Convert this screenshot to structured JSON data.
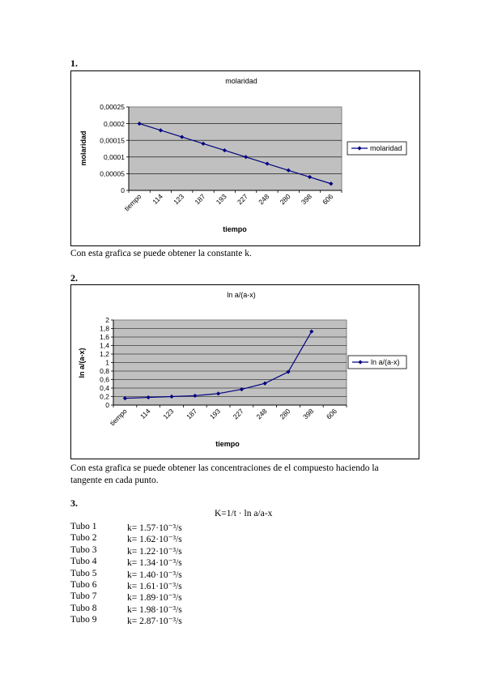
{
  "sections": [
    {
      "number": "1.",
      "caption": "Con esta grafica se puede obtener la constante k."
    },
    {
      "number": "2.",
      "caption_line1": "Con esta grafica se puede obtener las concentraciones de el compuesto haciendo la",
      "caption_line2": "tangente en cada punto."
    },
    {
      "number": "3.",
      "formula": "K=1/t · ln a/a-x"
    }
  ],
  "chart_data": [
    {
      "type": "line",
      "title": "molaridad",
      "xlabel": "tiempo",
      "ylabel": "molaridad",
      "categories": [
        "tiempo",
        "114",
        "123",
        "187",
        "193",
        "227",
        "248",
        "280",
        "398",
        "606"
      ],
      "yticks": [
        "0",
        "0,00005",
        "0,0001",
        "0,00015",
        "0,0002",
        "0,00025"
      ],
      "ylim": [
        0,
        0.00025
      ],
      "series": [
        {
          "name": "molaridad",
          "values": [
            0.0002,
            0.00018,
            0.00016,
            0.00014,
            0.00012,
            0.0001,
            8e-05,
            6e-05,
            4e-05,
            2e-05
          ]
        }
      ],
      "legend": "right",
      "grid": true,
      "colors": {
        "line": "#000080",
        "plot_bg": "#c0c0c0"
      }
    },
    {
      "type": "line",
      "title": "ln a/(a-x)",
      "xlabel": "tiempo",
      "ylabel": "ln a/(a-x)",
      "categories": [
        "tiempo",
        "114",
        "123",
        "187",
        "193",
        "227",
        "248",
        "280",
        "398",
        "606"
      ],
      "yticks": [
        "0",
        "0,2",
        "0,4",
        "0,6",
        "0,8",
        "1",
        "1,2",
        "1,4",
        "1,6",
        "1,8",
        "2"
      ],
      "ylim": [
        0,
        2
      ],
      "series": [
        {
          "name": "ln a/(a-x)",
          "values": [
            0.16,
            0.18,
            0.2,
            0.22,
            0.27,
            0.37,
            0.51,
            0.78,
            1.73,
            null
          ]
        }
      ],
      "legend": "right",
      "grid": true,
      "colors": {
        "line": "#000080",
        "plot_bg": "#c0c0c0"
      }
    }
  ],
  "k_table": [
    {
      "tubo": "Tubo 1",
      "k": "k= 1.57·10⁻³/s"
    },
    {
      "tubo": "Tubo 2",
      "k": "k= 1.62·10⁻³/s"
    },
    {
      "tubo": "Tubo 3",
      "k": "k= 1.22·10⁻³/s"
    },
    {
      "tubo": "Tubo 4",
      "k": "k= 1.34·10⁻³/s"
    },
    {
      "tubo": "Tubo 5",
      "k": "k= 1.40·10⁻³/s"
    },
    {
      "tubo": "Tubo 6",
      "k": "k= 1.61·10⁻³/s"
    },
    {
      "tubo": "Tubo 7",
      "k": "k= 1.89·10⁻³/s"
    },
    {
      "tubo": "Tubo 8",
      "k": "k= 1.98·10⁻³/s"
    },
    {
      "tubo": "Tubo 9",
      "k": "k= 2.87·10⁻³/s"
    }
  ]
}
